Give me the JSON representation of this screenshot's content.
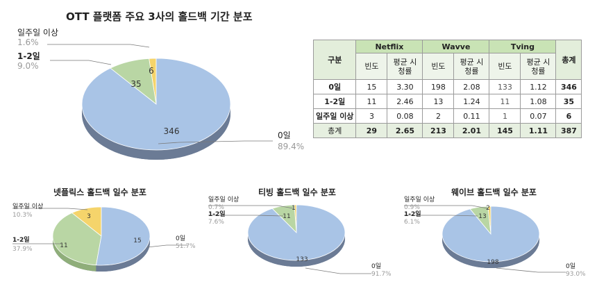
{
  "colors": {
    "zero_day": "#a9c4e6",
    "one_two_day": "#b9d6a4",
    "week_plus": "#f5d46b",
    "shadow": "#6b7b95"
  },
  "chart_data": [
    {
      "type": "pie",
      "title": "OTT 플랫폼 주요 3사의 홀드백 기간 분포",
      "categories": [
        "0일",
        "1-2일",
        "일주일 이상"
      ],
      "values": [
        346,
        35,
        6
      ],
      "percent_labels": [
        "89.4%",
        "9.0%",
        "1.6%"
      ]
    },
    {
      "type": "pie",
      "title": "넷플릭스 홀드백 일수 분포",
      "categories": [
        "0일",
        "1-2일",
        "일주일 이상"
      ],
      "values": [
        15,
        11,
        3
      ],
      "percent_labels": [
        "51.7%",
        "37.9%",
        "10.3%"
      ]
    },
    {
      "type": "pie",
      "title": "티빙 홀드백 일수 분포",
      "categories": [
        "0일",
        "1-2일",
        "일주일 이상"
      ],
      "values": [
        133,
        11,
        1
      ],
      "percent_labels": [
        "91.7%",
        "7.6%",
        "0.7%"
      ]
    },
    {
      "type": "pie",
      "title": "웨이브 홀드백 일수 분포",
      "categories": [
        "0일",
        "1-2일",
        "일주일 이상"
      ],
      "values": [
        198,
        13,
        2
      ],
      "percent_labels": [
        "93.0%",
        "6.1%",
        "0.9%"
      ]
    },
    {
      "type": "table",
      "header": {
        "corner": "구분",
        "groups": [
          "Netflix",
          "Wavve",
          "Tving"
        ],
        "total": "총계",
        "sub": [
          "빈도",
          "평균 시청률"
        ]
      },
      "rows": [
        {
          "label": "0일",
          "cells": [
            "15",
            "3.30",
            "198",
            "2.08",
            "133",
            "1.12",
            "346"
          ]
        },
        {
          "label": "1-2일",
          "cells": [
            "11",
            "2.46",
            "13",
            "1.24",
            "11",
            "1.08",
            "35"
          ]
        },
        {
          "label": "일주일 이상",
          "cells": [
            "3",
            "0.08",
            "2",
            "0.11",
            "1",
            "0.07",
            "6"
          ]
        },
        {
          "label": "총계",
          "cells": [
            "29",
            "2.65",
            "213",
            "2.01",
            "145",
            "1.11",
            "387"
          ]
        }
      ]
    }
  ]
}
